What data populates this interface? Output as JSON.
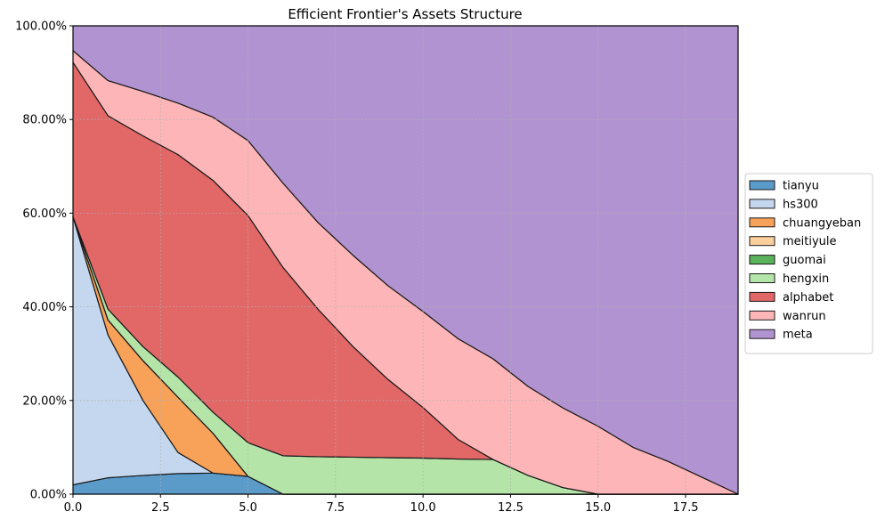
{
  "chart_data": {
    "type": "area",
    "stacked": true,
    "normalized": true,
    "title": "Efficient Frontier's Assets Structure",
    "xlabel": "",
    "ylabel": "",
    "xlim": [
      0,
      19
    ],
    "ylim": [
      0,
      1
    ],
    "x_ticks": [
      0,
      2.5,
      5,
      7.5,
      10,
      12.5,
      15,
      17.5
    ],
    "x_tick_labels": [
      "0.0",
      "2.5",
      "5.0",
      "7.5",
      "10.0",
      "12.5",
      "15.0",
      "17.5"
    ],
    "y_ticks": [
      0,
      0.2,
      0.4,
      0.6,
      0.8,
      1.0
    ],
    "y_tick_labels": [
      "0.00%",
      "20.00%",
      "40.00%",
      "60.00%",
      "80.00%",
      "100.00%"
    ],
    "grid": true,
    "legend_position": "center-right",
    "x": [
      0,
      1,
      2,
      3,
      4,
      5,
      6,
      7,
      8,
      9,
      10,
      11,
      12,
      13,
      14,
      15,
      16,
      17,
      18,
      19
    ],
    "series": [
      {
        "name": "tianyu",
        "color": "#5b9bc9",
        "values": [
          0.02,
          0.035,
          0.04,
          0.044,
          0.045,
          0.038,
          0,
          0,
          0,
          0,
          0,
          0,
          0,
          0,
          0,
          0,
          0,
          0,
          0,
          0
        ]
      },
      {
        "name": "hs300",
        "color": "#c5d7ee",
        "values": [
          0.572,
          0.305,
          0.16,
          0.045,
          0,
          0,
          0,
          0,
          0,
          0,
          0,
          0,
          0,
          0,
          0,
          0,
          0,
          0,
          0,
          0
        ]
      },
      {
        "name": "chuangyeban",
        "color": "#f8a158",
        "values": [
          0,
          0.032,
          0.085,
          0.118,
          0.085,
          0,
          0,
          0,
          0,
          0,
          0,
          0,
          0,
          0,
          0,
          0,
          0,
          0,
          0,
          0
        ]
      },
      {
        "name": "meitiyule",
        "color": "#fdcf9c",
        "values": [
          0,
          0,
          0,
          0,
          0,
          0,
          0,
          0,
          0,
          0,
          0,
          0,
          0,
          0,
          0,
          0,
          0,
          0,
          0,
          0
        ]
      },
      {
        "name": "guomai",
        "color": "#5ab25a",
        "values": [
          0,
          0,
          0,
          0,
          0,
          0,
          0,
          0,
          0,
          0,
          0,
          0,
          0,
          0,
          0,
          0,
          0,
          0,
          0,
          0
        ]
      },
      {
        "name": "hengxin",
        "color": "#b5e4a9",
        "values": [
          0,
          0.023,
          0.03,
          0.043,
          0.045,
          0.072,
          0.082,
          0.08,
          0.079,
          0.078,
          0.077,
          0.075,
          0.074,
          0.04,
          0.014,
          0,
          0,
          0,
          0,
          0
        ]
      },
      {
        "name": "alphabet",
        "color": "#e26767",
        "values": [
          0.33,
          0.413,
          0.45,
          0.475,
          0.495,
          0.485,
          0.402,
          0.315,
          0.236,
          0.167,
          0.108,
          0.042,
          0,
          0,
          0,
          0,
          0,
          0,
          0,
          0
        ]
      },
      {
        "name": "wanrun",
        "color": "#feb5b7",
        "values": [
          0.025,
          0.075,
          0.095,
          0.11,
          0.135,
          0.16,
          0.18,
          0.185,
          0.195,
          0.2,
          0.205,
          0.215,
          0.215,
          0.19,
          0.17,
          0.145,
          0.1,
          0.07,
          0.035,
          0
        ]
      },
      {
        "name": "meta",
        "color": "#b293d1",
        "values": [
          0.053,
          0.117,
          0.14,
          0.165,
          0.195,
          0.245,
          0.336,
          0.42,
          0.49,
          0.555,
          0.61,
          0.668,
          0.711,
          0.77,
          0.816,
          0.855,
          0.9,
          0.93,
          0.965,
          1.0
        ]
      }
    ]
  }
}
